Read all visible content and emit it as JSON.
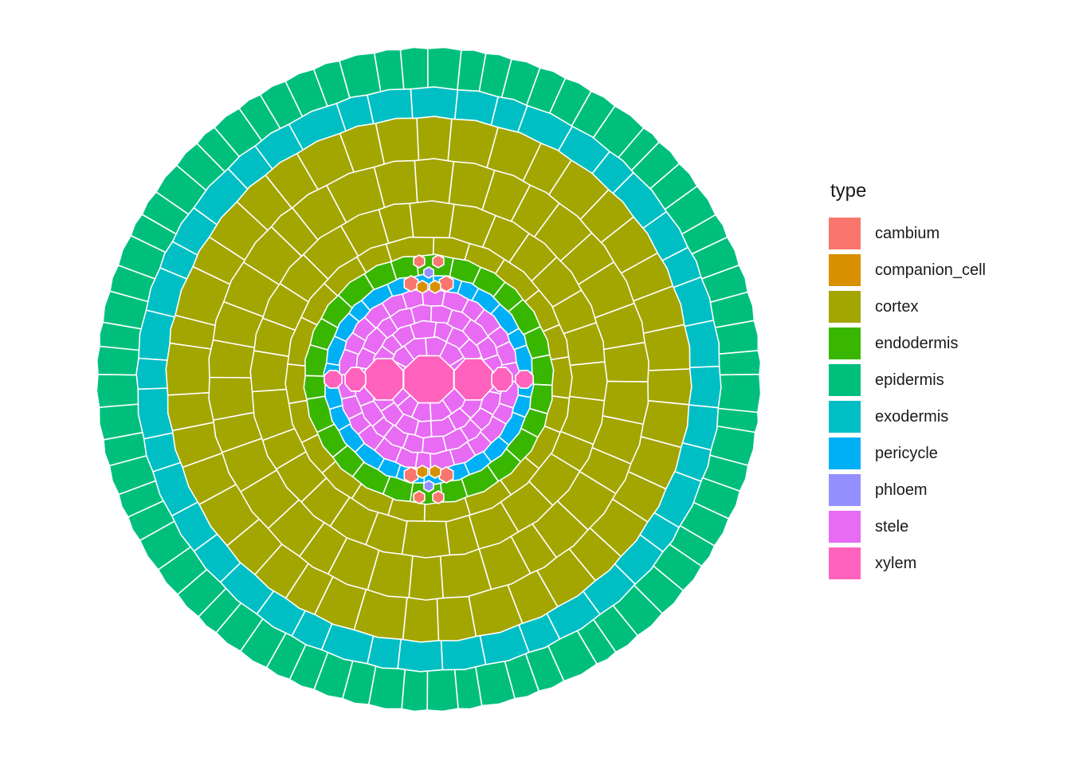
{
  "legend": {
    "title": "type",
    "items": [
      {
        "label": "cambium",
        "color": "#F8766D"
      },
      {
        "label": "companion_cell",
        "color": "#D89000"
      },
      {
        "label": "cortex",
        "color": "#A3A500"
      },
      {
        "label": "endodermis",
        "color": "#39B600"
      },
      {
        "label": "epidermis",
        "color": "#00BF7D"
      },
      {
        "label": "exodermis",
        "color": "#00BFC4"
      },
      {
        "label": "pericycle",
        "color": "#00B0F6"
      },
      {
        "label": "phloem",
        "color": "#9590FF"
      },
      {
        "label": "stele",
        "color": "#E76BF3"
      },
      {
        "label": "xylem",
        "color": "#FF62BC"
      }
    ]
  },
  "layers": [
    {
      "type": "epidermis",
      "cells": 72
    },
    {
      "type": "exodermis",
      "cells": 44
    },
    {
      "type": "cortex",
      "cells": 40
    },
    {
      "type": "cortex",
      "cells": 34
    },
    {
      "type": "cortex",
      "cells": 28
    },
    {
      "type": "cortex",
      "cells": 22
    },
    {
      "type": "endodermis",
      "cells": 26
    },
    {
      "type": "pericycle",
      "cells": 26
    },
    {
      "type": "stele",
      "cells": 26
    },
    {
      "type": "stele",
      "cells": 22
    },
    {
      "type": "stele",
      "cells": 17
    },
    {
      "type": "stele",
      "cells": 12
    }
  ]
}
